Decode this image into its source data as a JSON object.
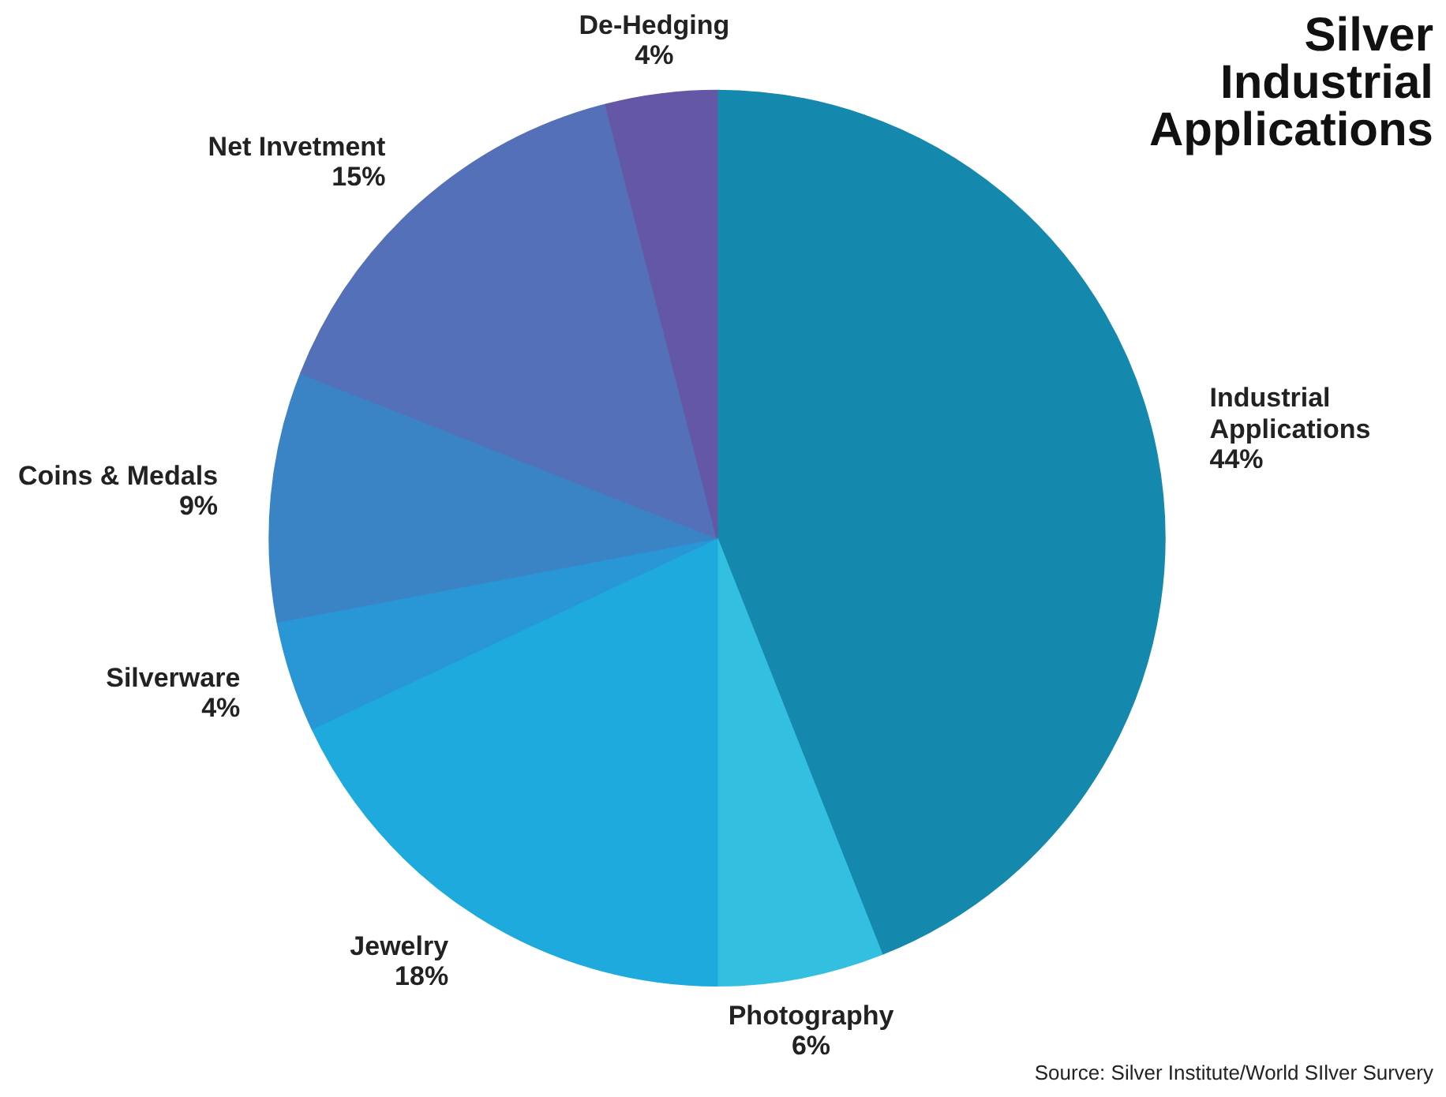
{
  "chart_data": {
    "type": "pie",
    "title": "Silver Industrial Applications",
    "categories": [
      "Industrial Applications",
      "Photography",
      "Jewelry",
      "Silverware",
      "Coins & Medals",
      "Net Invetment",
      "De-Hedging"
    ],
    "values": [
      44,
      6,
      18,
      4,
      9,
      15,
      4
    ],
    "value_labels": [
      "44%",
      "6%",
      "18%",
      "4%",
      "9%",
      "15%",
      "4%"
    ],
    "colors": [
      "#1589ad",
      "#33bfe0",
      "#1eaadc",
      "#2996d6",
      "#3a84c6",
      "#5470b8",
      "#6458a6"
    ],
    "annotations": [
      "Source: Silver Institute/World SIlver Survery"
    ]
  }
}
